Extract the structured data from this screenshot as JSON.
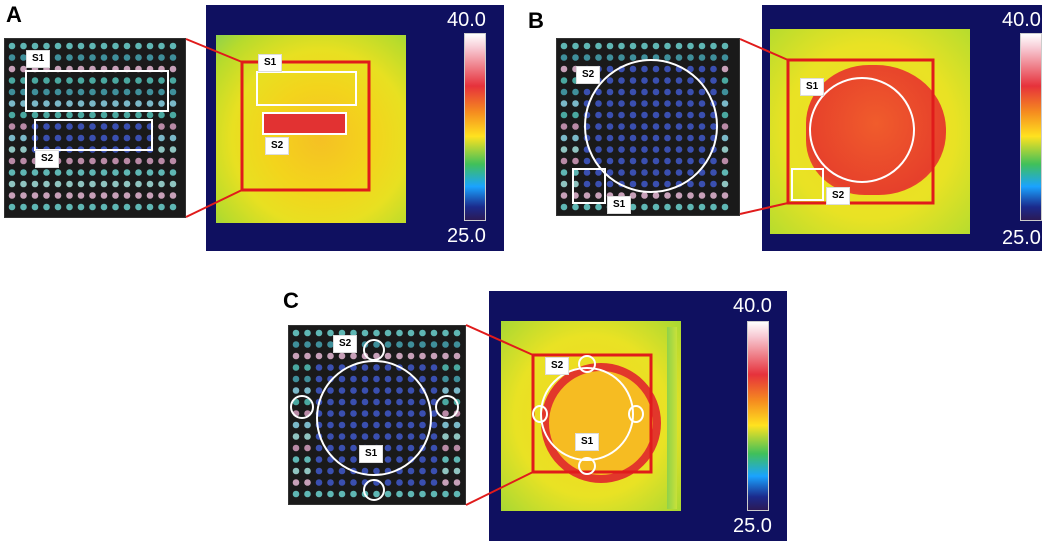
{
  "panels": [
    {
      "letter": "A",
      "scale_max": "40.0",
      "scale_min": "25.0",
      "labels": {
        "s1": "S1",
        "s2": "S2"
      }
    },
    {
      "letter": "B",
      "scale_max": "40.0",
      "scale_min": "25.0",
      "labels": {
        "s1": "S1",
        "s2": "S2"
      }
    },
    {
      "letter": "C",
      "scale_max": "40.0",
      "scale_min": "25.0",
      "labels": {
        "s1": "S1",
        "s2": "S2"
      }
    }
  ],
  "colors": {
    "highlight_box": "#e01b1b",
    "thermal_background": "#0f1060",
    "region_outline": "#ffffff"
  }
}
